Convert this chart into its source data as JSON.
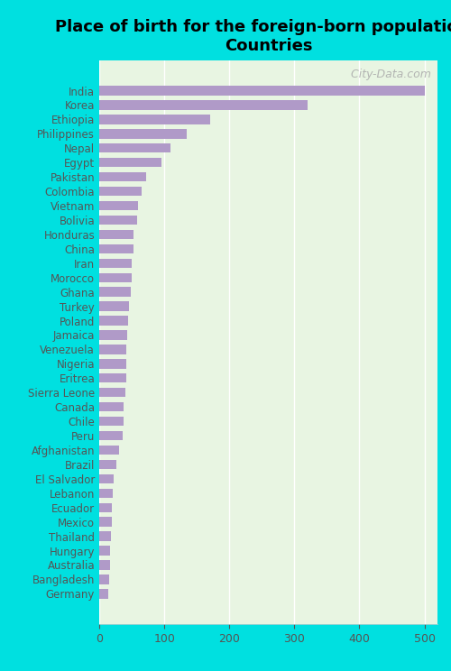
{
  "title": "Place of birth for the foreign-born population -\nCountries",
  "categories": [
    "India",
    "Korea",
    "Ethiopia",
    "Philippines",
    "Nepal",
    "Egypt",
    "Pakistan",
    "Colombia",
    "Vietnam",
    "Bolivia",
    "Honduras",
    "China",
    "Iran",
    "Morocco",
    "Ghana",
    "Turkey",
    "Poland",
    "Jamaica",
    "Venezuela",
    "Nigeria",
    "Eritrea",
    "Sierra Leone",
    "Canada",
    "Chile",
    "Peru",
    "Afghanistan",
    "Brazil",
    "El Salvador",
    "Lebanon",
    "Ecuador",
    "Mexico",
    "Thailand",
    "Hungary",
    "Australia",
    "Bangladesh",
    "Germany"
  ],
  "values": [
    500,
    320,
    170,
    135,
    110,
    95,
    72,
    65,
    60,
    58,
    52,
    52,
    50,
    50,
    48,
    46,
    44,
    43,
    42,
    42,
    41,
    40,
    38,
    37,
    36,
    30,
    27,
    22,
    21,
    20,
    20,
    18,
    17,
    16,
    15,
    14
  ],
  "bar_color": "#b09ac8",
  "bg_color_plot": "#e8f5e2",
  "bg_color_fig": "#00e0e0",
  "xlim": [
    0,
    520
  ],
  "title_fontsize": 13,
  "label_fontsize": 8.5,
  "tick_fontsize": 9,
  "watermark": "  City-Data.com",
  "watermark_fontsize": 9
}
